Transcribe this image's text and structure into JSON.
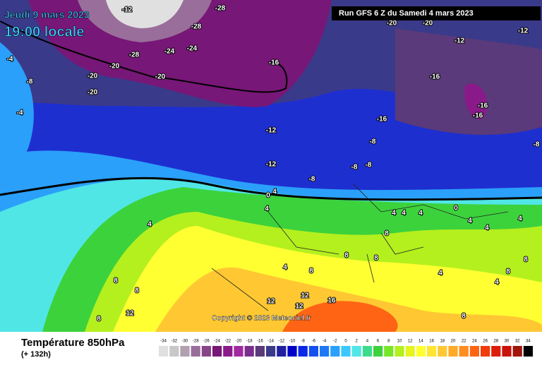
{
  "header": {
    "date": "Jeudi 9 mars 2023",
    "time": "19:00 locale",
    "run": "Run GFS 6 Z du Samedi 4 mars 2023"
  },
  "copyright": "Copyright © 2023 Meteociel.fr",
  "footer": {
    "title": "Température 850hPa",
    "lead": "(+ 132h)"
  },
  "legend": {
    "ticks": [
      -34,
      -32,
      -30,
      -28,
      -26,
      -24,
      -22,
      -20,
      -18,
      -16,
      -14,
      -12,
      -10,
      -8,
      -6,
      -4,
      -2,
      0,
      2,
      4,
      6,
      8,
      10,
      12,
      14,
      16,
      18,
      20,
      22,
      24,
      26,
      28,
      30,
      32,
      34
    ],
    "colors": [
      "#e0e0e0",
      "#c8c8c8",
      "#b0a0b0",
      "#9a6e9a",
      "#884488",
      "#771777",
      "#8a1a8a",
      "#a02aa0",
      "#7a2d8c",
      "#5a3a7a",
      "#3a3a8a",
      "#2020a0",
      "#0000c8",
      "#0a28e6",
      "#1450f0",
      "#1e78f5",
      "#2aa0fa",
      "#3cc8ff",
      "#50e6e6",
      "#3cdc8c",
      "#3cd23c",
      "#78e628",
      "#b4f01e",
      "#e6f51e",
      "#ffff32",
      "#ffe632",
      "#ffc832",
      "#ffaa28",
      "#ff8c1e",
      "#ff6414",
      "#f03c0a",
      "#dc1e0a",
      "#c8140a",
      "#a0140a",
      "#000000"
    ]
  },
  "map_labels": [
    "-12",
    "-28",
    "-28",
    "-28",
    "-24",
    "-24",
    "-20",
    "-20",
    "-20",
    "-20",
    "-16",
    "-8",
    "-4",
    "-4",
    "-20",
    "-20",
    "-12",
    "-12",
    "-16",
    "-16",
    "-16",
    "-16",
    "-12",
    "-8",
    "-12",
    "-8",
    "-8",
    "-8",
    "-8",
    "0",
    "4",
    "4",
    "4",
    "4",
    "4",
    "0",
    "4",
    "4",
    "4",
    "4",
    "8",
    "8",
    "8",
    "8",
    "4",
    "8",
    "8",
    "12",
    "8",
    "12",
    "12",
    "12",
    "16",
    "4",
    "4",
    "8",
    "8",
    "8"
  ]
}
